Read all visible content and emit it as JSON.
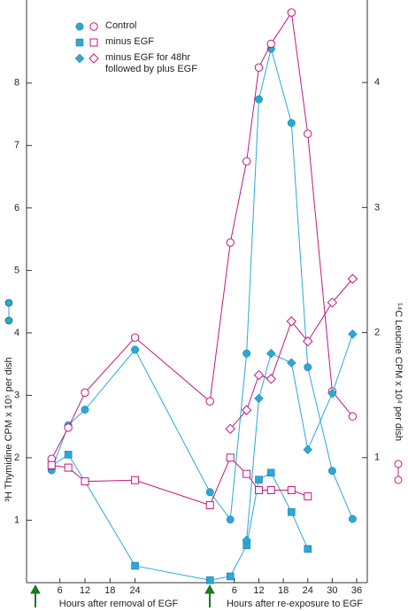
{
  "chart_data": {
    "type": "line",
    "ylabel": "³H Thymidine CPM x 10⁵ per dish",
    "y2label": "¹⁴C Leucine CPM x 10⁴ per dish",
    "ylim": [
      0,
      9.33
    ],
    "yticks": [
      1,
      2,
      3,
      4,
      5,
      6,
      7,
      8
    ],
    "y2lim": [
      0,
      4.66
    ],
    "y2ticks": [
      1,
      2,
      3,
      4
    ],
    "color": "#2aa8d8",
    "y2color": "#c4177f",
    "xsegments": [
      {
        "xlabel": "Hours after removal of EGF",
        "xlim": [
          -2,
          40
        ],
        "xticks": [
          6,
          12,
          18,
          24
        ]
      },
      {
        "xlabel": "Hours after re-exposure to EGF",
        "xlim": [
          -2,
          38.6
        ],
        "xticks": [
          6,
          12,
          18,
          24,
          30,
          36
        ]
      }
    ],
    "series": [
      {
        "name": "Control",
        "marker": "circle",
        "thymidine": [
          {
            "x": [
              4,
              8,
              12,
              24
            ],
            "values": [
              1.8,
              2.52,
              2.77,
              3.73
            ]
          },
          {
            "x": [
              0,
              5,
              9,
              12,
              15,
              20,
              24,
              30,
              35
            ],
            "values": [
              1.45,
              1.01,
              3.67,
              7.74,
              8.55,
              7.36,
              3.45,
              1.79,
              1.02
            ]
          }
        ],
        "leucine": [
          {
            "x": [
              4,
              8,
              12,
              24
            ],
            "values": [
              0.99,
              1.24,
              1.52,
              1.96
            ]
          },
          {
            "x": [
              0,
              5,
              9,
              12,
              15,
              20,
              24,
              30,
              35
            ],
            "values": [
              1.45,
              2.72,
              3.37,
              4.12,
              4.31,
              4.56,
              3.59,
              1.53,
              1.33
            ]
          }
        ]
      },
      {
        "name": "minus EGF",
        "marker": "square",
        "thymidine": [
          {
            "x": [
              4,
              8,
              12,
              24
            ],
            "values": [
              1.87,
              2.05,
              1.62,
              0.27
            ]
          },
          {
            "x": [
              0,
              5,
              9,
              12,
              15,
              20,
              24
            ],
            "values": [
              0.04,
              0.1,
              0.6,
              1.65,
              1.76,
              1.13,
              0.54
            ]
          }
        ],
        "leucine": [
          {
            "x": [
              4,
              8,
              12,
              24
            ],
            "values": [
              0.94,
              0.92,
              0.81,
              0.82
            ]
          },
          {
            "x": [
              0,
              5,
              9,
              12,
              15,
              20,
              24
            ],
            "values": [
              0.62,
              1.0,
              0.87,
              0.74,
              0.74,
              0.74,
              0.69
            ]
          }
        ]
      },
      {
        "name": "minus EGF for 48hr followed by plus EGF",
        "marker": "diamond",
        "thymidine": [
          {
            "x": [],
            "values": []
          },
          {
            "x": [
              9,
              12,
              15,
              20,
              24,
              30,
              35
            ],
            "values": [
              0.68,
              2.95,
              3.67,
              3.52,
              2.13,
              3.03,
              3.98
            ]
          }
        ],
        "leucine": [
          {
            "x": [],
            "values": []
          },
          {
            "x": [
              5,
              9,
              12,
              15,
              20,
              24,
              30,
              35
            ],
            "values": [
              1.23,
              1.38,
              1.66,
              1.63,
              2.09,
              1.93,
              2.24,
              2.43
            ]
          }
        ]
      }
    ]
  }
}
